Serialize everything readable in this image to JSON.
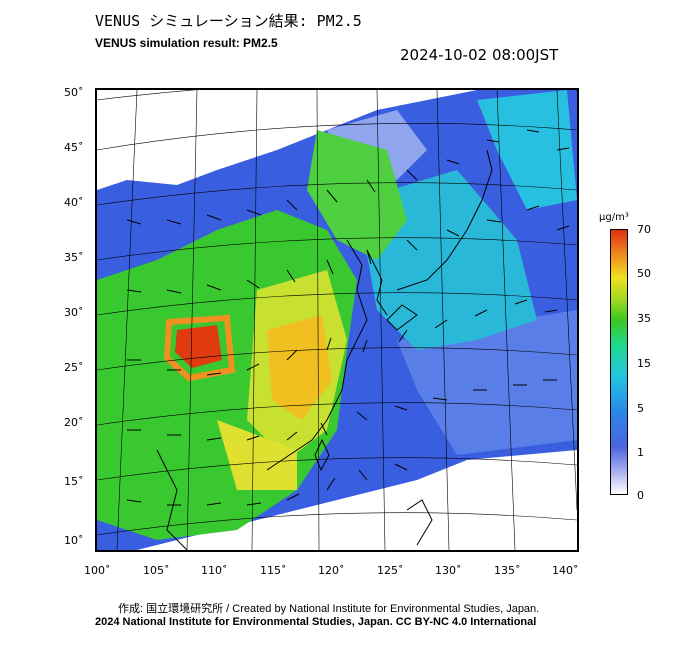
{
  "header": {
    "title_jp": "VENUS シミュレーション結果: PM2.5",
    "title_en": "VENUS simulation result: PM2.5",
    "timestamp": "2024-10-02 08:00JST"
  },
  "map": {
    "lat_labels": [
      "50˚",
      "45˚",
      "40˚",
      "35˚",
      "30˚",
      "25˚",
      "20˚",
      "15˚",
      "10˚"
    ],
    "lon_labels": [
      "100˚",
      "105˚",
      "110˚",
      "115˚",
      "120˚",
      "125˚",
      "130˚",
      "135˚",
      "140˚"
    ],
    "region": "East Asia",
    "field": "PM2.5 concentration with wind vectors",
    "concentration_bands": [
      {
        "area": "Western China high spot",
        "level": 70
      },
      {
        "area": "Central/Eastern China",
        "level": 35
      },
      {
        "area": "Northern China",
        "level": 15
      },
      {
        "area": "Japan / ocean",
        "level": 5
      }
    ]
  },
  "colorbar": {
    "unit": "μg/m³",
    "ticks": [
      "70",
      "50",
      "35",
      "15",
      "5",
      "1",
      "0"
    ],
    "colors": [
      "#e03010",
      "#f09020",
      "#f0e020",
      "#3ac820",
      "#22c7dc",
      "#4a63e0",
      "#ffffff"
    ]
  },
  "footer": {
    "credit": "作成: 国立環境研究所 / Created by National Institute for Environmental Studies, Japan.",
    "license": "2024 National Institute for Environmental Studies, Japan. CC BY-NC 4.0 International"
  }
}
